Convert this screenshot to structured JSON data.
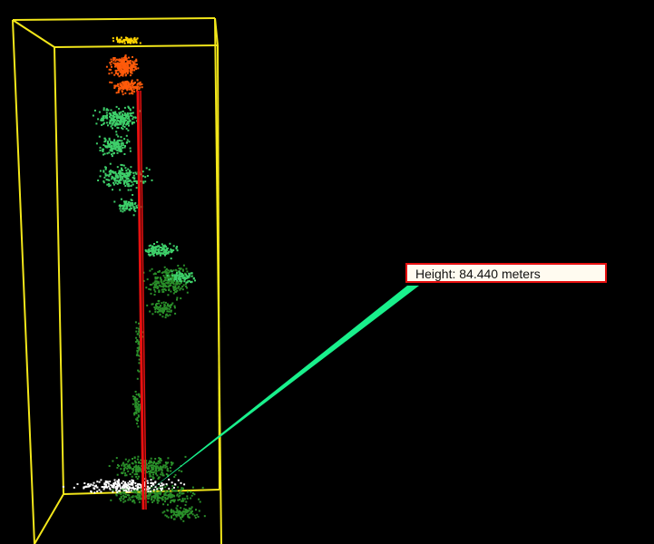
{
  "viewer": {
    "background_color": "#000000",
    "bounding_box_color": "#f2e61a",
    "measure_line_color": "#e81010",
    "leader_color": "#19f08c"
  },
  "measurement": {
    "label": "Height: 84.440 meters",
    "value": 84.44,
    "unit": "meters"
  },
  "point_cloud": {
    "class_colors": {
      "ground": "#ffffff",
      "low_vegetation": "#2a8f2a",
      "mid_vegetation": "#3ecf6a",
      "canopy": "#ff5a0a",
      "top": "#ffd400"
    }
  }
}
